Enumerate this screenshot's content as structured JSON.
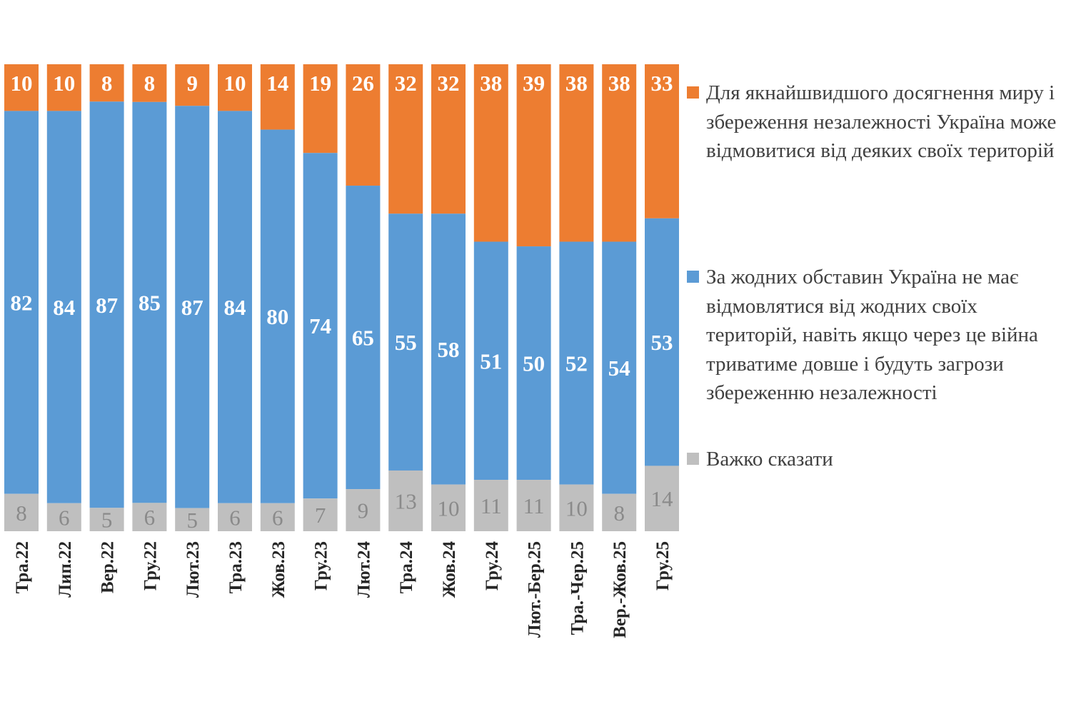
{
  "chart_data": {
    "type": "bar",
    "stacked": true,
    "normalized": true,
    "title": "",
    "xlabel": "",
    "ylabel": "",
    "ylim": [
      0,
      100
    ],
    "grid": false,
    "legend_position": "right",
    "categories": [
      "Тра.22",
      "Лип.22",
      "Вер.22",
      "Гру.22",
      "Лют.23",
      "Тра.23",
      "Жов.23",
      "Гру.23",
      "Лют.24",
      "Тра.24",
      "Жов.24",
      "Гру.24",
      "Лют.-Бер.25",
      "Тра.-Чер.25",
      "Вер.-Жов.25",
      "Гру.25"
    ],
    "series": [
      {
        "name": "Для якнайшвидшого досягнення миру і збереження незалежності Україна може відмовитися від деяких своїх територій",
        "color": "#ED7D31",
        "values": [
          10,
          10,
          8,
          8,
          9,
          10,
          14,
          19,
          26,
          32,
          32,
          38,
          39,
          38,
          38,
          33
        ]
      },
      {
        "name": "За жодних обставин Україна не має відмовлятися від жодних своїх територій, навіть якщо через це війна триватиме довше і будуть загрози збереженню незалежності",
        "color": "#5B9BD5",
        "values": [
          82,
          84,
          87,
          85,
          87,
          84,
          80,
          74,
          65,
          55,
          58,
          51,
          50,
          52,
          54,
          53
        ]
      },
      {
        "name": "Важко сказати",
        "color": "#BFBFBF",
        "values": [
          8,
          6,
          5,
          6,
          5,
          6,
          6,
          7,
          9,
          13,
          10,
          11,
          11,
          10,
          8,
          14
        ]
      }
    ]
  }
}
